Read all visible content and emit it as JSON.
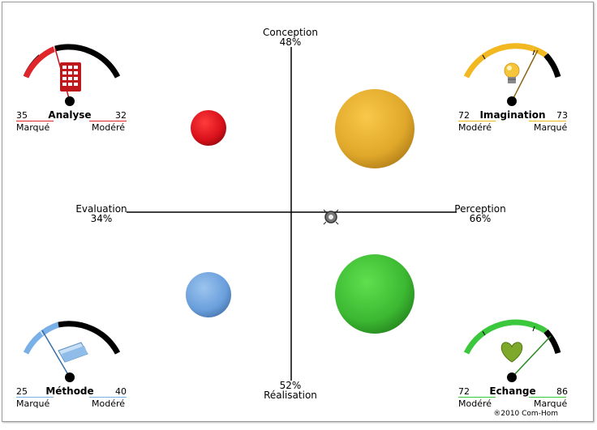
{
  "axes": {
    "top": {
      "name": "Conception",
      "value": "48%"
    },
    "bottom": {
      "name": "Réalisation",
      "value": "52%"
    },
    "left": {
      "name": "Evaluation",
      "value": "34%"
    },
    "right": {
      "name": "Perception",
      "value": "66%"
    }
  },
  "quadrants": {
    "analyse": {
      "name": "Analyse",
      "left_value": "35",
      "left_label": "Marqué",
      "right_value": "32",
      "right_label": "Modéré",
      "accent": "#e0262b",
      "icon": "calculator-icon"
    },
    "imagination": {
      "name": "Imagination",
      "left_value": "72",
      "left_label": "Modéré",
      "right_value": "73",
      "right_label": "Marqué",
      "accent": "#f2b822",
      "icon": "lightbulb-icon"
    },
    "methode": {
      "name": "Méthode",
      "left_value": "25",
      "left_label": "Marqué",
      "right_value": "40",
      "right_label": "Modéré",
      "accent": "#7ab0e8",
      "icon": "folder-icon"
    },
    "echange": {
      "name": "Echange",
      "left_value": "72",
      "left_label": "Modéré",
      "right_value": "86",
      "right_label": "Marqué",
      "accent": "#3cc83c",
      "icon": "heart-icon"
    }
  },
  "center_icon": "target-icon",
  "copyright": "®2010 Com-Hom"
}
